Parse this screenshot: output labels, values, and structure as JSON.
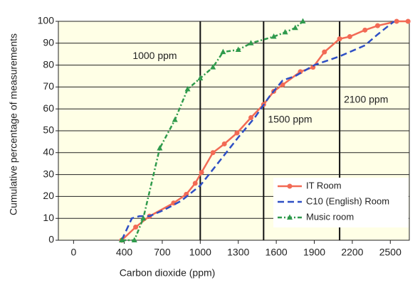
{
  "chart_data": {
    "type": "line",
    "x_label": "Carbon dioxide (ppm)",
    "y_label": "Cumulative percentage of measurements",
    "xlim": [
      -120,
      2650
    ],
    "ylim": [
      0,
      100
    ],
    "xticks": [
      0,
      400,
      700,
      1000,
      1300,
      1600,
      1900,
      2200,
      2500
    ],
    "yticks": [
      0,
      10,
      20,
      30,
      40,
      50,
      60,
      70,
      80,
      90,
      100
    ],
    "grid": true,
    "plot_background": "#ffffe6",
    "legend": "lower right",
    "reference_lines": [
      {
        "value": 1000,
        "label": "1000 ppm"
      },
      {
        "value": 1500,
        "label": "1500 ppm"
      },
      {
        "value": 2100,
        "label": "2100 ppm"
      }
    ],
    "series": [
      {
        "name": "IT Room",
        "color": "#f26a55",
        "dash": "solid",
        "marker": "circle",
        "x": [
          380,
          490,
          600,
          790,
          890,
          960,
          1010,
          1100,
          1190,
          1290,
          1400,
          1500,
          1580,
          1650,
          1790,
          1890,
          1980,
          2100,
          2180,
          2300,
          2400,
          2550,
          2640
        ],
        "values": [
          0,
          6,
          11,
          17,
          21,
          26,
          31,
          40,
          44,
          49,
          56,
          62,
          68,
          71,
          77,
          79,
          86,
          92,
          93,
          96,
          98,
          100,
          100
        ]
      },
      {
        "name": "C10 (English) Room",
        "color": "#2e4fc4",
        "dash": "dashed",
        "marker": "none",
        "x": [
          380,
          460,
          520,
          600,
          720,
          850,
          1000,
          1150,
          1300,
          1430,
          1550,
          1650,
          1750,
          1900,
          2100,
          2300,
          2400,
          2530
        ],
        "values": [
          0,
          10,
          11,
          11,
          14,
          18,
          25,
          36,
          47,
          56,
          66,
          73,
          75,
          80,
          84,
          89,
          94,
          100
        ]
      },
      {
        "name": "Music room",
        "color": "#2f9a4c",
        "dash": "dashdot",
        "marker": "triangle",
        "x": [
          380,
          480,
          550,
          680,
          800,
          900,
          1000,
          1100,
          1180,
          1300,
          1400,
          1580,
          1670,
          1750,
          1810
        ],
        "values": [
          0,
          0,
          10,
          42,
          55,
          69,
          74,
          79,
          86,
          87,
          90,
          93,
          95,
          97,
          100
        ]
      }
    ]
  }
}
